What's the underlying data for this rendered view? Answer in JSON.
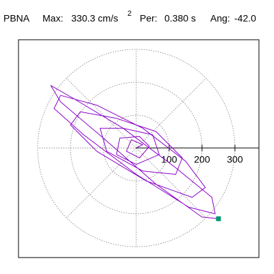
{
  "chart_data": {
    "type": "orbit",
    "title_parts": {
      "station": "PBNA",
      "max_label": "Max:",
      "max_value": "330.3 cm/s",
      "max_sup": "2",
      "per_label": "Per:",
      "per_value": "0.380 s",
      "ang_label": "Ang:",
      "ang_value": "-42.0"
    },
    "x": [
      0,
      20,
      -15,
      -30,
      10,
      40,
      10,
      -50,
      -60,
      0,
      70,
      50,
      -40,
      -110,
      -90,
      20,
      120,
      140,
      60,
      -60,
      -170,
      -200,
      -120,
      30,
      170,
      210,
      150,
      20,
      -120,
      -230,
      -250,
      -160,
      0,
      160,
      240,
      230,
      120,
      -40,
      -190,
      -260,
      -230,
      -100,
      60,
      200,
      250
    ],
    "y": [
      0,
      10,
      25,
      -10,
      -30,
      5,
      35,
      30,
      -20,
      -50,
      -20,
      40,
      60,
      60,
      -10,
      -70,
      -80,
      -30,
      50,
      90,
      110,
      70,
      -10,
      -100,
      -150,
      -120,
      -40,
      60,
      130,
      160,
      120,
      40,
      -80,
      -180,
      -200,
      -150,
      -60,
      60,
      150,
      190,
      140,
      30,
      -110,
      -210,
      -215
    ],
    "color": "#8a00c8",
    "marker_color": "#009870",
    "xlim": [
      -358,
      373
    ],
    "ylim": [
      -333,
      329
    ],
    "rticks": [
      100,
      200,
      300
    ]
  }
}
